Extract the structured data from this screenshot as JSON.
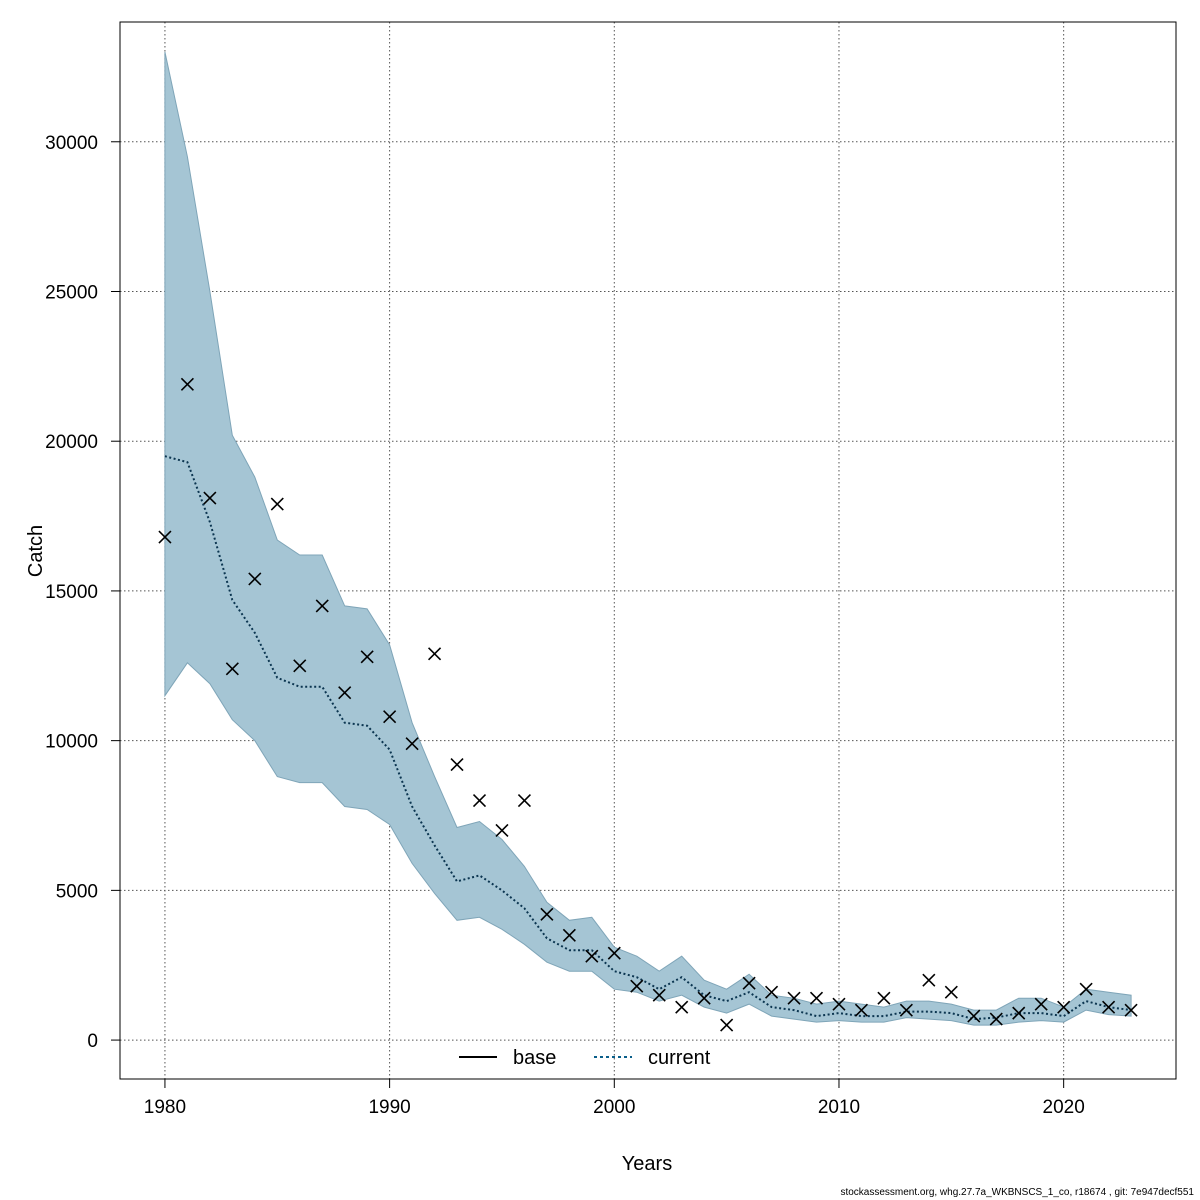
{
  "chart_data": {
    "type": "line",
    "xlabel": "Years",
    "ylabel": "Catch",
    "xlim": [
      1978,
      2025
    ],
    "ylim": [
      -1300,
      34000
    ],
    "xticks": [
      1980,
      1990,
      2000,
      2010,
      2020
    ],
    "yticks": [
      0,
      5000,
      10000,
      15000,
      20000,
      25000,
      30000
    ],
    "grid": true,
    "legend_position": "bottom-center",
    "legend": [
      {
        "name": "base",
        "style": "solid",
        "color": "#000000"
      },
      {
        "name": "current",
        "style": "dotted",
        "color": "#0a5f8a"
      }
    ],
    "colors": {
      "band_fill": "#a5c5d4",
      "band_edge": "#7fa5b8",
      "current_line": "#0b3550"
    },
    "x": [
      1980,
      1981,
      1982,
      1983,
      1984,
      1985,
      1986,
      1987,
      1988,
      1989,
      1990,
      1991,
      1992,
      1993,
      1994,
      1995,
      1996,
      1997,
      1998,
      1999,
      2000,
      2001,
      2002,
      2003,
      2004,
      2005,
      2006,
      2007,
      2008,
      2009,
      2010,
      2011,
      2012,
      2013,
      2014,
      2015,
      2016,
      2017,
      2018,
      2019,
      2020,
      2021,
      2022,
      2023
    ],
    "series": [
      {
        "name": "current",
        "values": [
          19500,
          19300,
          17300,
          14700,
          13600,
          12100,
          11800,
          11800,
          10600,
          10500,
          9700,
          7800,
          6500,
          5300,
          5500,
          5000,
          4400,
          3400,
          3000,
          3000,
          2300,
          2100,
          1700,
          2100,
          1500,
          1300,
          1600,
          1100,
          1000,
          800,
          900,
          800,
          800,
          950,
          950,
          900,
          700,
          750,
          900,
          900,
          800,
          1300,
          1100,
          1000
        ]
      },
      {
        "name": "band_upper",
        "values": [
          33000,
          29500,
          25000,
          20200,
          18800,
          16700,
          16200,
          16200,
          14500,
          14400,
          13200,
          10600,
          8800,
          7100,
          7300,
          6700,
          5800,
          4600,
          4000,
          4100,
          3100,
          2800,
          2300,
          2800,
          2000,
          1700,
          2200,
          1500,
          1400,
          1200,
          1300,
          1200,
          1100,
          1300,
          1300,
          1200,
          1000,
          1000,
          1400,
          1400,
          1100,
          1700,
          1600,
          1500
        ]
      },
      {
        "name": "band_lower",
        "values": [
          11500,
          12600,
          11900,
          10700,
          10000,
          8800,
          8600,
          8600,
          7800,
          7700,
          7200,
          5900,
          4900,
          4000,
          4100,
          3700,
          3200,
          2600,
          2300,
          2300,
          1700,
          1600,
          1300,
          1500,
          1100,
          900,
          1200,
          800,
          700,
          600,
          650,
          600,
          600,
          750,
          700,
          650,
          500,
          500,
          600,
          650,
          600,
          1000,
          850,
          800
        ]
      },
      {
        "name": "observed",
        "values": [
          16800,
          21900,
          18100,
          12400,
          15400,
          17900,
          12500,
          14500,
          11600,
          12800,
          10800,
          9900,
          12900,
          9200,
          8000,
          7000,
          8000,
          4200,
          3500,
          2800,
          2900,
          1800,
          1500,
          1100,
          1400,
          500,
          1900,
          1600,
          1400,
          1400,
          1200,
          1000,
          1400,
          1000,
          2000,
          1600,
          800,
          700,
          900,
          1200,
          1100,
          1700,
          1100,
          1000
        ]
      }
    ]
  },
  "footer": "stockassessment.org, whg.27.7a_WKBNSCS_1_co, r18674 , git: 7e947decf551"
}
